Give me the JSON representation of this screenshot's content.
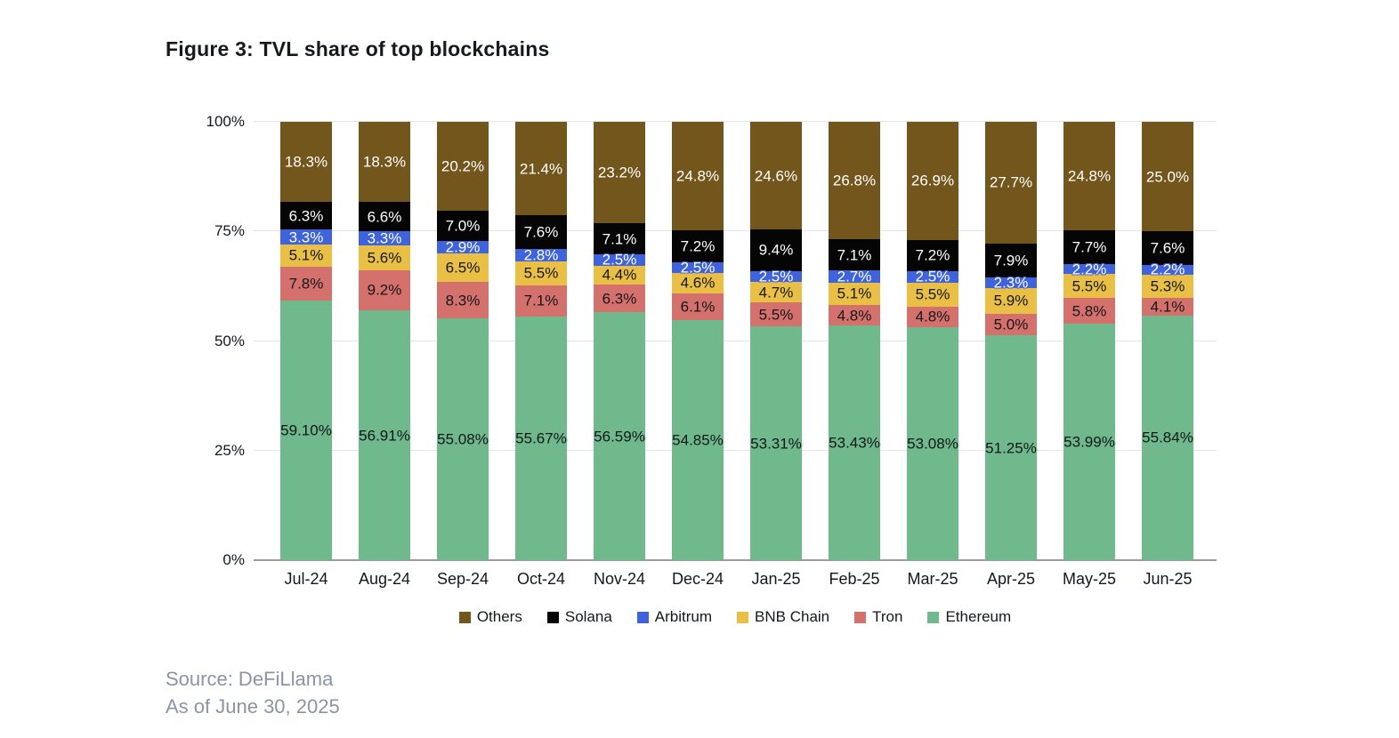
{
  "figure": {
    "title": "Figure 3: TVL share of top blockchains",
    "source_line1": "Source: DeFiLlama",
    "source_line2": "As of June 30, 2025"
  },
  "colors": {
    "title_text": "#17191E",
    "source_text": "#8C94A4",
    "gridline": "#E4E4E4",
    "axis_line": "#9B9B9B",
    "tick_text": "#14171C"
  },
  "chart_data": {
    "type": "bar",
    "stacked": true,
    "title": "Figure 3: TVL share of top blockchains",
    "xlabel": "",
    "ylabel": "",
    "ylim": [
      0,
      100
    ],
    "grid": true,
    "categories": [
      "Jul-24",
      "Aug-24",
      "Sep-24",
      "Oct-24",
      "Nov-24",
      "Dec-24",
      "Jan-25",
      "Feb-25",
      "Mar-25",
      "Apr-25",
      "May-25",
      "Jun-25"
    ],
    "y_axis": {
      "ticks": [
        {
          "value": 0,
          "label": "0%"
        },
        {
          "value": 25,
          "label": "25%"
        },
        {
          "value": 50,
          "label": "50%"
        },
        {
          "value": 75,
          "label": "75%"
        },
        {
          "value": 100,
          "label": "100%"
        }
      ]
    },
    "series": [
      {
        "name": "Ethereum",
        "color": "#6FB98C",
        "label_color": "#14171C",
        "values": [
          59.1,
          56.91,
          55.08,
          55.67,
          56.59,
          54.85,
          53.31,
          53.43,
          53.08,
          51.25,
          53.99,
          55.84
        ],
        "labels": [
          "59.10%",
          "56.91%",
          "55.08%",
          "55.67%",
          "56.59%",
          "54.85%",
          "53.31%",
          "53.43%",
          "53.08%",
          "51.25%",
          "53.99%",
          "55.84%"
        ]
      },
      {
        "name": "Tron",
        "color": "#D5716C",
        "label_color": "#14171C",
        "values": [
          7.8,
          9.2,
          8.3,
          7.1,
          6.3,
          6.1,
          5.5,
          4.8,
          4.8,
          5.0,
          5.8,
          4.1
        ],
        "labels": [
          "7.8%",
          "9.2%",
          "8.3%",
          "7.1%",
          "6.3%",
          "6.1%",
          "5.5%",
          "4.8%",
          "4.8%",
          "5.0%",
          "5.8%",
          "4.1%"
        ]
      },
      {
        "name": "BNB Chain",
        "color": "#E9BF45",
        "label_color": "#14171C",
        "values": [
          5.1,
          5.6,
          6.5,
          5.5,
          4.4,
          4.6,
          4.7,
          5.1,
          5.5,
          5.9,
          5.5,
          5.3
        ],
        "labels": [
          "5.1%",
          "5.6%",
          "6.5%",
          "5.5%",
          "4.4%",
          "4.6%",
          "4.7%",
          "5.1%",
          "5.5%",
          "5.9%",
          "5.5%",
          "5.3%"
        ]
      },
      {
        "name": "Arbitrum",
        "color": "#3E63DC",
        "label_color": "#FFFFFF",
        "values": [
          3.3,
          3.3,
          2.9,
          2.8,
          2.5,
          2.5,
          2.5,
          2.7,
          2.5,
          2.3,
          2.2,
          2.2
        ],
        "labels": [
          "3.3%",
          "3.3%",
          "2.9%",
          "2.8%",
          "2.5%",
          "2.5%",
          "2.5%",
          "2.7%",
          "2.5%",
          "2.3%",
          "2.2%",
          "2.2%"
        ]
      },
      {
        "name": "Solana",
        "color": "#050505",
        "label_color": "#FFFFFF",
        "values": [
          6.3,
          6.6,
          7.0,
          7.6,
          7.1,
          7.2,
          9.4,
          7.1,
          7.2,
          7.9,
          7.7,
          7.6
        ],
        "labels": [
          "6.3%",
          "6.6%",
          "7.0%",
          "7.6%",
          "7.1%",
          "7.2%",
          "9.4%",
          "7.1%",
          "7.2%",
          "7.9%",
          "7.7%",
          "7.6%"
        ]
      },
      {
        "name": "Others",
        "color": "#72561C",
        "label_color": "#FFFFFF",
        "values": [
          18.3,
          18.3,
          20.2,
          21.4,
          23.2,
          24.8,
          24.6,
          26.8,
          26.9,
          27.7,
          24.8,
          25.0
        ],
        "labels": [
          "18.3%",
          "18.3%",
          "20.2%",
          "21.4%",
          "23.2%",
          "24.8%",
          "24.6%",
          "26.8%",
          "26.9%",
          "27.7%",
          "24.8%",
          "25.0%"
        ]
      }
    ],
    "legend": {
      "position": "bottom",
      "order": [
        "Others",
        "Solana",
        "Arbitrum",
        "BNB Chain",
        "Tron",
        "Ethereum"
      ]
    }
  }
}
